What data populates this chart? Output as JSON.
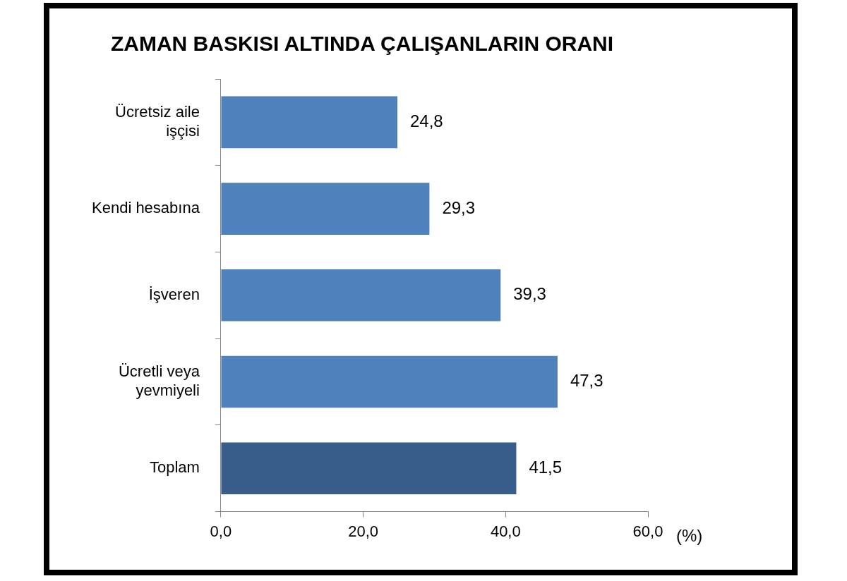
{
  "chart_data": {
    "type": "bar",
    "orientation": "horizontal",
    "title": "ZAMAN BASKISI ALTINDA ÇALIŞANLARIN ORANI",
    "xlabel": "(%)",
    "categories": [
      "Ücretsiz aile işçisi",
      "Kendi hesabına",
      "İşveren",
      "Ücretli veya yevmiyeli",
      "Toplam"
    ],
    "values": [
      24.8,
      29.3,
      39.3,
      47.3,
      41.5
    ],
    "value_labels": [
      "24,8",
      "29,3",
      "39,3",
      "47,3",
      "41,5"
    ],
    "colors": [
      "#4f81bd",
      "#4f81bd",
      "#4f81bd",
      "#4f81bd",
      "#385d8a"
    ],
    "xlim": [
      0,
      60
    ],
    "xticks": [
      {
        "value": 0,
        "label": "0,0"
      },
      {
        "value": 20,
        "label": "20,0"
      },
      {
        "value": 40,
        "label": "40,0"
      },
      {
        "value": 60,
        "label": "60,0"
      }
    ],
    "grid": false,
    "legend": false
  }
}
